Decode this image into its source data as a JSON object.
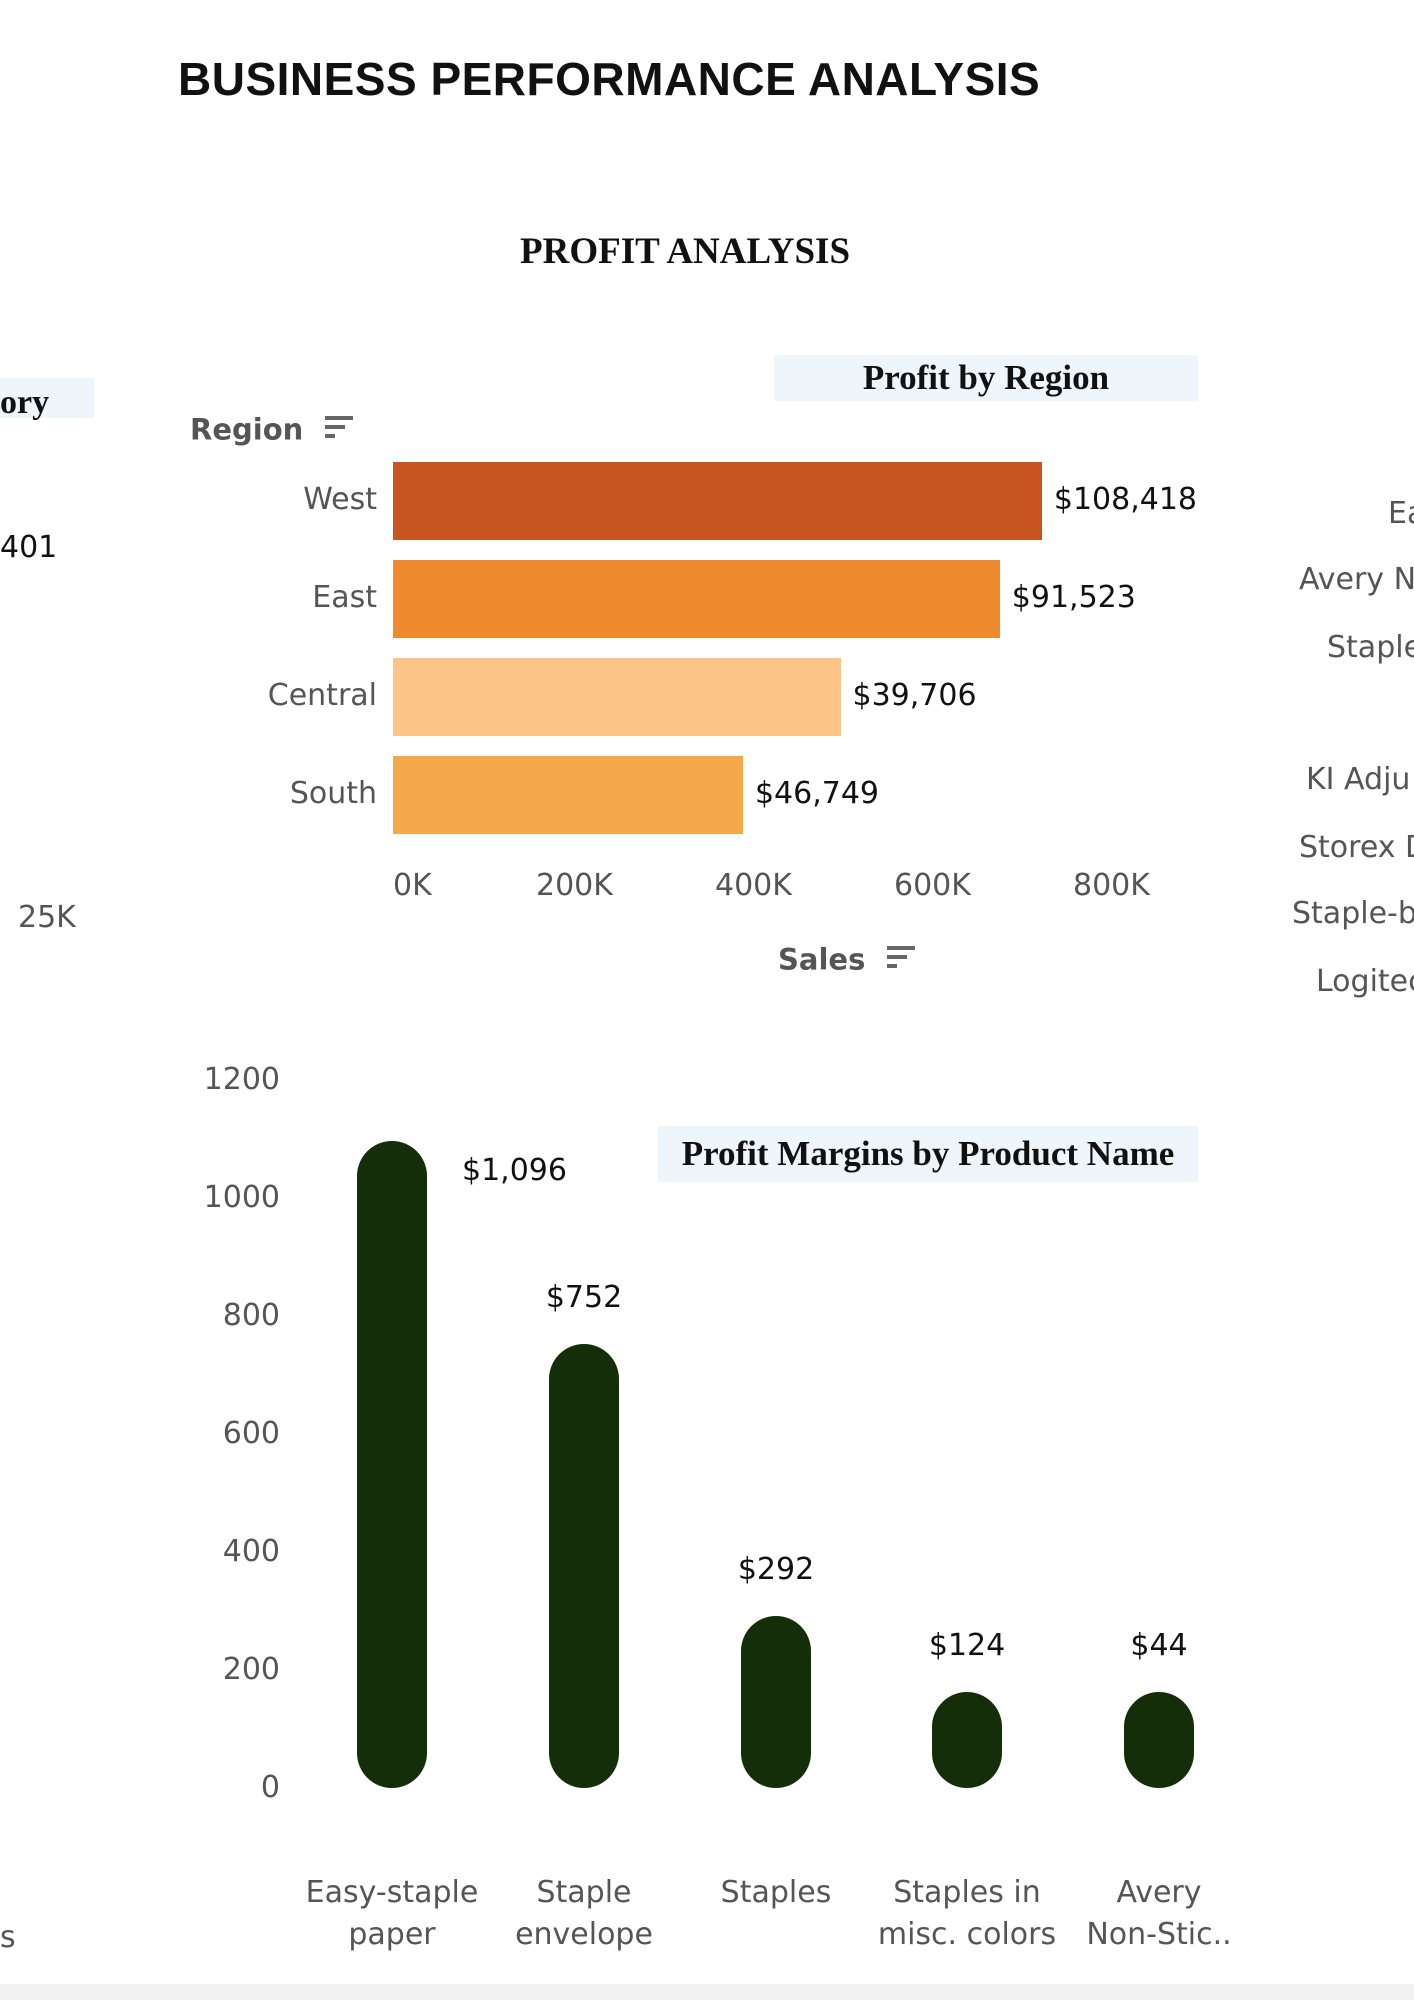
{
  "dashboard": {
    "title": "BUSINESS PERFORMANCE ANALYSIS",
    "section_title": "PROFIT ANALYSIS"
  },
  "left_panel_partial": {
    "title_fragment": "ory",
    "value_fragment": "401",
    "axis_fragment": "25K",
    "label_fragment": "s"
  },
  "right_panel_partial": {
    "labels": [
      "Ea",
      "Avery N",
      "Staple",
      "KI Adju",
      "Storex D",
      "Staple-b",
      "Logitec"
    ]
  },
  "chart_data": [
    {
      "type": "bar",
      "orientation": "horizontal",
      "title": "Profit by Region",
      "row_header": "Region",
      "xlabel": "Sales",
      "categories": [
        "West",
        "East",
        "Central",
        "South"
      ],
      "values": [
        108418,
        91523,
        39706,
        46749
      ],
      "value_labels": [
        "$108,418",
        "$91,523",
        "$39,706",
        "$46,749"
      ],
      "bar_lengths_sales": [
        725000,
        678000,
        500000,
        391000
      ],
      "colors": [
        "#c8541f",
        "#f08a2e",
        "#fdc487",
        "#f5a849"
      ],
      "x_ticks": [
        "0K",
        "200K",
        "400K",
        "600K",
        "800K"
      ],
      "x_tick_values": [
        0,
        200000,
        400000,
        600000,
        800000
      ],
      "xlim": [
        0,
        840000
      ]
    },
    {
      "type": "bar",
      "title": "Profit Margins by Product Name",
      "categories": [
        [
          "Easy-staple",
          "paper"
        ],
        [
          "Staple",
          "envelope"
        ],
        [
          "Staples"
        ],
        [
          "Staples in",
          "misc. colors"
        ],
        [
          "Avery",
          "Non-Stic.."
        ]
      ],
      "values": [
        1096,
        752,
        292,
        124,
        44
      ],
      "value_labels": [
        "$1,096",
        "$752",
        "$292",
        "$124",
        "$44"
      ],
      "color": "#132e08",
      "y_ticks": [
        "0",
        "200",
        "400",
        "600",
        "800",
        "1000",
        "1200"
      ],
      "y_tick_values": [
        0,
        200,
        400,
        600,
        800,
        1000,
        1200
      ],
      "ylim": [
        0,
        1200
      ]
    }
  ]
}
